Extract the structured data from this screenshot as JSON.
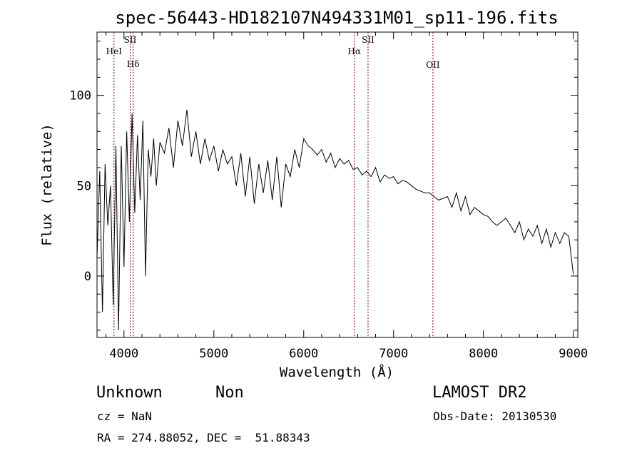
{
  "chart_data": {
    "type": "line",
    "title": "spec-56443-HD182107N494331M01_sp11-196.fits",
    "xlabel": "Wavelength (Å)",
    "ylabel": "Flux (relative)",
    "xlim": [
      3700,
      9050
    ],
    "ylim": [
      -34,
      135
    ],
    "xticks": [
      4000,
      5000,
      6000,
      7000,
      8000,
      9000
    ],
    "yticks": [
      0,
      50,
      100
    ],
    "grid": false,
    "line_color": "#000000",
    "marker_color": "#8b0000",
    "series": [
      {
        "x": [
          3700,
          3730,
          3760,
          3790,
          3820,
          3850,
          3880,
          3910,
          3940,
          3970,
          4000,
          4030,
          4060,
          4090,
          4120,
          4150,
          4180,
          4210,
          4240,
          4270,
          4300,
          4330,
          4360,
          4400,
          4450,
          4500,
          4550,
          4600,
          4650,
          4700,
          4750,
          4800,
          4850,
          4900,
          4950,
          5000,
          5050,
          5100,
          5150,
          5200,
          5250,
          5300,
          5350,
          5400,
          5450,
          5500,
          5550,
          5600,
          5650,
          5700,
          5750,
          5800,
          5850,
          5900,
          5950,
          6000,
          6050,
          6100,
          6150,
          6200,
          6250,
          6300,
          6350,
          6400,
          6450,
          6500,
          6550,
          6600,
          6650,
          6700,
          6750,
          6800,
          6850,
          6900,
          6950,
          7000,
          7050,
          7100,
          7150,
          7200,
          7250,
          7300,
          7350,
          7400,
          7450,
          7500,
          7550,
          7600,
          7650,
          7700,
          7750,
          7800,
          7850,
          7900,
          7950,
          8000,
          8050,
          8100,
          8150,
          8200,
          8250,
          8300,
          8350,
          8400,
          8450,
          8500,
          8550,
          8600,
          8650,
          8700,
          8750,
          8800,
          8850,
          8900,
          8950,
          9000
        ],
        "values": [
          10,
          58,
          -20,
          62,
          28,
          50,
          -16,
          72,
          -30,
          72,
          5,
          80,
          30,
          90,
          35,
          78,
          42,
          86,
          0,
          70,
          55,
          76,
          50,
          74,
          68,
          82,
          60,
          86,
          72,
          92,
          66,
          80,
          62,
          76,
          64,
          72,
          58,
          70,
          62,
          66,
          50,
          68,
          44,
          66,
          40,
          62,
          46,
          64,
          42,
          66,
          38,
          62,
          55,
          70,
          60,
          76,
          72,
          70,
          67,
          70,
          63,
          68,
          60,
          65,
          62,
          64,
          59,
          60,
          56,
          58,
          55,
          60,
          52,
          56,
          54,
          55,
          51,
          53,
          52,
          50,
          48,
          47,
          46,
          46,
          44,
          42,
          43,
          44,
          38,
          46,
          36,
          44,
          34,
          38,
          36,
          34,
          33,
          30,
          28,
          30,
          32,
          28,
          24,
          30,
          20,
          26,
          22,
          28,
          18,
          26,
          16,
          24,
          18,
          24,
          22,
          1
        ]
      }
    ],
    "lines": [
      {
        "label": "HeI",
        "x": 3889
      },
      {
        "label": "SII",
        "x": 4069
      },
      {
        "label": "Hδ",
        "x": 4102
      },
      {
        "label": "Hα",
        "x": 6563
      },
      {
        "label": "SII",
        "x": 6716
      },
      {
        "label": "OII",
        "x": 7438
      }
    ]
  },
  "footer": {
    "object_class": "Unknown",
    "object_subclass": "Non",
    "cz": "cz = NaN",
    "coords": "RA = 274.88052, DEC =  51.88343",
    "survey": "LAMOST DR2",
    "obs_date": "Obs-Date: 20130530"
  }
}
